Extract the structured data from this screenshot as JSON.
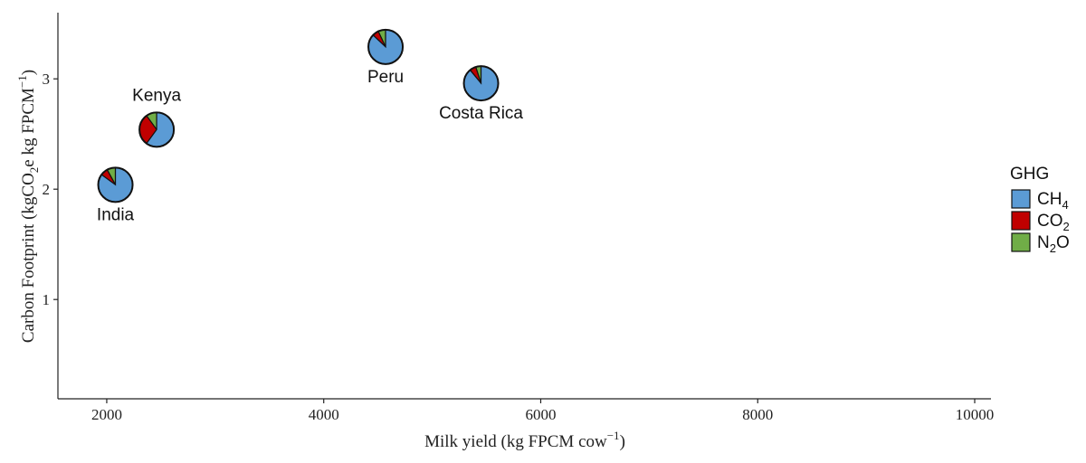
{
  "chart_data": {
    "type": "scatter",
    "title": "",
    "xlabel": "Milk yield (kg FPCM cow",
    "xlabel_sup": "−1",
    "xlabel_end": ")",
    "ylabel": "Carbon Footprint (kgCO",
    "ylabel_sub": "2",
    "ylabel_mid": "e kg FPCM",
    "ylabel_sup": "−1",
    "ylabel_end": ")",
    "xlim": [
      1550,
      10150
    ],
    "ylim": [
      0.1,
      3.6
    ],
    "xticks": [
      "2000",
      "4000",
      "6000",
      "8000",
      "10000"
    ],
    "yticks": [
      "1",
      "2",
      "3"
    ],
    "grid": false,
    "legend": {
      "title": "GHG",
      "placement": "right",
      "entries": [
        {
          "base": "CH",
          "sub": "4",
          "tail": "",
          "color": "#5b9bd5"
        },
        {
          "base": "CO",
          "sub": "2",
          "tail": "",
          "color": "#c00000"
        },
        {
          "base": "N",
          "sub": "2",
          "tail": "O",
          "color": "#70ad47"
        }
      ]
    },
    "series": [
      "CH4",
      "CO2",
      "N2O"
    ],
    "points": [
      {
        "label": "India",
        "x": 2080,
        "y": 2.04,
        "shares": [
          0.85,
          0.07,
          0.08
        ],
        "label_pos": "below"
      },
      {
        "label": "Kenya",
        "x": 2460,
        "y": 2.54,
        "shares": [
          0.6,
          0.3,
          0.1
        ],
        "label_pos": "above"
      },
      {
        "label": "Peru",
        "x": 4570,
        "y": 3.29,
        "shares": [
          0.87,
          0.06,
          0.07
        ],
        "label_pos": "below"
      },
      {
        "label": "Costa Rica",
        "x": 5450,
        "y": 2.96,
        "shares": [
          0.89,
          0.06,
          0.05
        ],
        "label_pos": "below"
      }
    ]
  }
}
